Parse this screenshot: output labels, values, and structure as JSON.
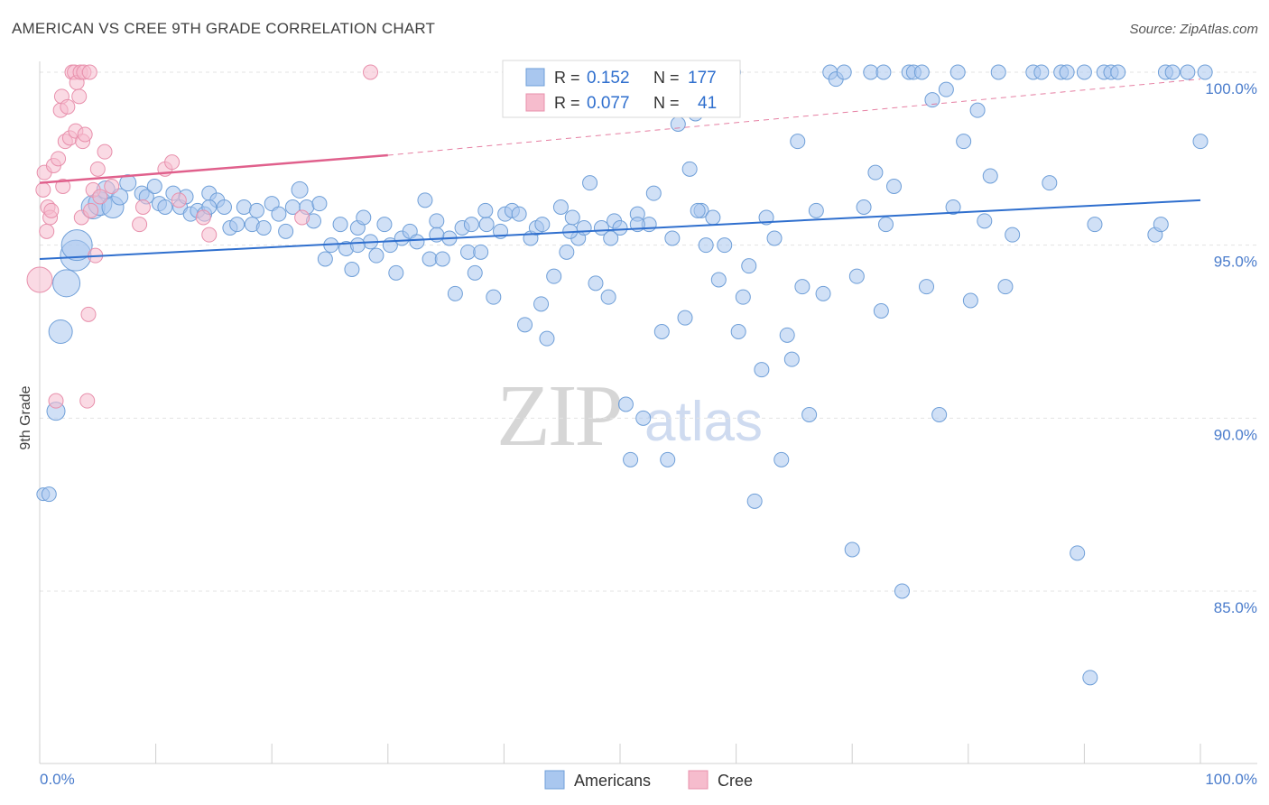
{
  "title": "AMERICAN VS CREE 9TH GRADE CORRELATION CHART",
  "source": "Source: ZipAtlas.com",
  "watermark": {
    "zip": "ZIP",
    "atlas": "atlas"
  },
  "colors": {
    "americans_fill": "#a9c7ef",
    "americans_stroke": "#6f9fd8",
    "americans_line": "#2f6fce",
    "cree_fill": "#f6bccd",
    "cree_stroke": "#e890ac",
    "cree_line": "#e0608c",
    "tick_label": "#4a7ccc",
    "grid": "#e3e3e3"
  },
  "legend_top": {
    "r_label": "R =",
    "n_label": "N =",
    "rows": [
      {
        "r": "0.152",
        "n": "177"
      },
      {
        "r": "0.077",
        "n": "41"
      }
    ]
  },
  "chart_data": {
    "type": "scatter",
    "title": "AMERICAN VS CREE 9TH GRADE CORRELATION CHART",
    "xlabel": "",
    "ylabel": "9th Grade",
    "xlim": [
      0,
      100
    ],
    "ylim": [
      80.8,
      100.8
    ],
    "x_tick_labels": [
      "0.0%",
      "100.0%"
    ],
    "y_ticks": [
      85,
      90,
      95,
      100
    ],
    "y_tick_labels": [
      "85.0%",
      "90.0%",
      "95.0%",
      "100.0%"
    ],
    "grid": true,
    "legend_position": "bottom-center",
    "series": [
      {
        "name": "Americans",
        "r": 0.152,
        "n": 177,
        "trend": {
          "x": [
            0,
            100
          ],
          "y": [
            94.6,
            96.3
          ],
          "dashed_from": null
        },
        "points": [
          [
            0.3,
            87.8,
            7
          ],
          [
            0.8,
            87.8,
            8
          ],
          [
            1.4,
            90.2,
            10
          ],
          [
            1.8,
            92.5,
            13
          ],
          [
            2.3,
            93.9,
            15
          ],
          [
            3.1,
            94.7,
            17
          ],
          [
            3.2,
            95.0,
            17
          ],
          [
            4.6,
            96.1,
            13
          ],
          [
            5.2,
            96.2,
            13
          ],
          [
            6.3,
            96.1,
            12
          ],
          [
            5.7,
            96.6,
            10
          ],
          [
            6.9,
            96.4,
            9
          ],
          [
            7.6,
            96.8,
            9
          ],
          [
            8.8,
            96.5,
            8
          ],
          [
            9.2,
            96.4,
            8
          ],
          [
            9.9,
            96.7,
            8
          ],
          [
            10.3,
            96.2,
            8
          ],
          [
            10.8,
            96.1,
            8
          ],
          [
            11.5,
            96.5,
            8
          ],
          [
            12.1,
            96.1,
            8
          ],
          [
            12.6,
            96.4,
            8
          ],
          [
            13.0,
            95.9,
            8
          ],
          [
            13.6,
            96.0,
            8
          ],
          [
            14.2,
            95.9,
            8
          ],
          [
            14.6,
            96.5,
            8
          ],
          [
            15.3,
            96.3,
            8
          ],
          [
            15.9,
            96.1,
            8
          ],
          [
            16.4,
            95.5,
            8
          ],
          [
            17.0,
            95.6,
            8
          ],
          [
            17.6,
            96.1,
            8
          ],
          [
            18.3,
            95.6,
            8
          ],
          [
            18.7,
            96.0,
            8
          ],
          [
            19.3,
            95.5,
            8
          ],
          [
            20.0,
            96.2,
            8
          ],
          [
            20.6,
            95.9,
            8
          ],
          [
            21.2,
            95.4,
            8
          ],
          [
            21.8,
            96.1,
            8
          ],
          [
            22.4,
            96.6,
            9
          ],
          [
            23.0,
            96.1,
            8
          ],
          [
            23.6,
            95.7,
            8
          ],
          [
            24.1,
            96.2,
            8
          ],
          [
            24.6,
            94.6,
            8
          ],
          [
            25.1,
            95.0,
            8
          ],
          [
            25.9,
            95.6,
            8
          ],
          [
            26.4,
            94.9,
            8
          ],
          [
            26.9,
            94.3,
            8
          ],
          [
            27.4,
            95.5,
            8
          ],
          [
            27.9,
            95.8,
            8
          ],
          [
            28.5,
            95.1,
            8
          ],
          [
            29.0,
            94.7,
            8
          ],
          [
            29.7,
            95.6,
            8
          ],
          [
            30.2,
            95.0,
            8
          ],
          [
            30.7,
            94.2,
            8
          ],
          [
            31.2,
            95.2,
            8
          ],
          [
            31.9,
            95.4,
            8
          ],
          [
            32.5,
            95.1,
            8
          ],
          [
            33.2,
            96.3,
            8
          ],
          [
            33.6,
            94.6,
            8
          ],
          [
            34.2,
            95.7,
            8
          ],
          [
            34.7,
            94.6,
            8
          ],
          [
            35.3,
            95.2,
            8
          ],
          [
            35.8,
            93.6,
            8
          ],
          [
            36.4,
            95.5,
            8
          ],
          [
            36.9,
            94.8,
            8
          ],
          [
            37.5,
            94.2,
            8
          ],
          [
            38.0,
            94.8,
            8
          ],
          [
            38.5,
            95.6,
            8
          ],
          [
            39.1,
            93.5,
            8
          ],
          [
            39.7,
            95.4,
            8
          ],
          [
            40.1,
            95.9,
            8
          ],
          [
            40.7,
            96.0,
            8
          ],
          [
            41.3,
            95.9,
            8
          ],
          [
            41.8,
            92.7,
            8
          ],
          [
            42.3,
            95.2,
            8
          ],
          [
            42.8,
            95.5,
            8
          ],
          [
            43.2,
            93.3,
            8
          ],
          [
            43.7,
            92.3,
            8
          ],
          [
            44.3,
            94.1,
            8
          ],
          [
            44.9,
            96.1,
            8
          ],
          [
            45.4,
            94.8,
            8
          ],
          [
            45.9,
            95.8,
            8
          ],
          [
            46.4,
            95.2,
            8
          ],
          [
            46.9,
            95.5,
            8
          ],
          [
            47.4,
            96.8,
            8
          ],
          [
            47.9,
            93.9,
            8
          ],
          [
            48.4,
            95.5,
            8
          ],
          [
            49.0,
            93.5,
            8
          ],
          [
            49.5,
            95.7,
            8
          ],
          [
            50.0,
            95.5,
            8
          ],
          [
            50.5,
            90.4,
            8
          ],
          [
            50.9,
            88.8,
            8
          ],
          [
            51.5,
            95.9,
            8
          ],
          [
            52.0,
            90.0,
            8
          ],
          [
            52.5,
            95.6,
            8
          ],
          [
            52.9,
            96.5,
            8
          ],
          [
            53.6,
            92.5,
            8
          ],
          [
            54.1,
            88.8,
            8
          ],
          [
            54.5,
            95.2,
            8
          ],
          [
            55.0,
            98.5,
            8
          ],
          [
            55.6,
            92.9,
            8
          ],
          [
            56.0,
            97.2,
            8
          ],
          [
            56.5,
            98.8,
            8
          ],
          [
            57.0,
            96.0,
            8
          ],
          [
            57.4,
            95.0,
            8
          ],
          [
            58.0,
            95.8,
            8
          ],
          [
            58.5,
            94.0,
            8
          ],
          [
            59.0,
            95.0,
            8
          ],
          [
            59.6,
            100.0,
            10
          ],
          [
            60.2,
            92.5,
            8
          ],
          [
            60.6,
            93.5,
            8
          ],
          [
            61.1,
            94.4,
            8
          ],
          [
            61.6,
            87.6,
            8
          ],
          [
            62.2,
            91.4,
            8
          ],
          [
            62.6,
            95.8,
            8
          ],
          [
            63.3,
            95.2,
            8
          ],
          [
            63.9,
            88.8,
            8
          ],
          [
            64.4,
            92.4,
            8
          ],
          [
            64.8,
            91.7,
            8
          ],
          [
            65.3,
            98.0,
            8
          ],
          [
            65.7,
            93.8,
            8
          ],
          [
            66.3,
            90.1,
            8
          ],
          [
            66.9,
            96.0,
            8
          ],
          [
            67.5,
            93.6,
            8
          ],
          [
            68.1,
            100.0,
            8
          ],
          [
            68.6,
            99.8,
            8
          ],
          [
            69.3,
            100.0,
            8
          ],
          [
            70.0,
            86.2,
            8
          ],
          [
            70.4,
            94.1,
            8
          ],
          [
            71.0,
            96.1,
            8
          ],
          [
            71.6,
            100.0,
            8
          ],
          [
            72.0,
            97.1,
            8
          ],
          [
            72.5,
            93.1,
            8
          ],
          [
            72.9,
            95.6,
            8
          ],
          [
            73.6,
            96.7,
            8
          ],
          [
            74.3,
            85.0,
            8
          ],
          [
            74.9,
            100.0,
            8
          ],
          [
            75.3,
            100.0,
            8
          ],
          [
            76.0,
            100.0,
            8
          ],
          [
            76.4,
            93.8,
            8
          ],
          [
            76.9,
            99.2,
            8
          ],
          [
            77.5,
            90.1,
            8
          ],
          [
            78.1,
            99.5,
            8
          ],
          [
            78.7,
            96.1,
            8
          ],
          [
            79.1,
            100.0,
            8
          ],
          [
            79.6,
            98.0,
            8
          ],
          [
            80.2,
            93.4,
            8
          ],
          [
            80.8,
            98.9,
            8
          ],
          [
            81.4,
            95.7,
            8
          ],
          [
            81.9,
            97.0,
            8
          ],
          [
            82.6,
            100.0,
            8
          ],
          [
            83.2,
            93.8,
            8
          ],
          [
            83.8,
            95.3,
            8
          ],
          [
            85.6,
            100.0,
            8
          ],
          [
            86.3,
            100.0,
            8
          ],
          [
            87.0,
            96.8,
            8
          ],
          [
            88.0,
            100.0,
            8
          ],
          [
            88.5,
            100.0,
            8
          ],
          [
            89.4,
            86.1,
            8
          ],
          [
            90.0,
            100.0,
            8
          ],
          [
            90.9,
            95.6,
            8
          ],
          [
            91.7,
            100.0,
            8
          ],
          [
            92.3,
            100.0,
            8
          ],
          [
            92.9,
            100.0,
            8
          ],
          [
            96.1,
            95.3,
            8
          ],
          [
            96.6,
            95.6,
            8
          ],
          [
            97.0,
            100.0,
            8
          ],
          [
            97.6,
            100.0,
            8
          ],
          [
            90.5,
            82.5,
            8
          ],
          [
            100.0,
            98.0,
            8
          ],
          [
            98.9,
            100.0,
            8
          ],
          [
            100.4,
            100.0,
            8
          ],
          [
            72.7,
            100.0,
            8
          ],
          [
            56.7,
            96.0,
            8
          ],
          [
            38.4,
            96.0,
            8
          ],
          [
            45.7,
            95.4,
            8
          ],
          [
            27.4,
            95.0,
            8
          ],
          [
            14.6,
            96.1,
            8
          ],
          [
            37.2,
            95.6,
            8
          ],
          [
            43.3,
            95.6,
            8
          ],
          [
            49.2,
            95.2,
            8
          ],
          [
            34.2,
            95.3,
            8
          ],
          [
            51.5,
            95.6,
            8
          ]
        ]
      },
      {
        "name": "Cree",
        "r": 0.077,
        "n": 41,
        "trend": {
          "x": [
            0,
            30,
            100
          ],
          "y": [
            96.8,
            97.6,
            99.8
          ],
          "dashed_from": 30
        },
        "points": [
          [
            0.0,
            94.0,
            14
          ],
          [
            0.3,
            96.6,
            8
          ],
          [
            0.4,
            97.1,
            8
          ],
          [
            0.6,
            95.4,
            8
          ],
          [
            0.7,
            96.1,
            8
          ],
          [
            0.9,
            95.8,
            8
          ],
          [
            1.0,
            96.0,
            8
          ],
          [
            1.2,
            97.3,
            8
          ],
          [
            1.4,
            90.5,
            8
          ],
          [
            1.6,
            97.5,
            8
          ],
          [
            1.8,
            98.9,
            8
          ],
          [
            1.9,
            99.3,
            8
          ],
          [
            2.0,
            96.7,
            8
          ],
          [
            2.2,
            98.0,
            8
          ],
          [
            2.4,
            99.0,
            8
          ],
          [
            2.6,
            98.1,
            8
          ],
          [
            2.8,
            100.0,
            8
          ],
          [
            3.0,
            100.0,
            8
          ],
          [
            3.1,
            98.3,
            8
          ],
          [
            3.2,
            99.7,
            8
          ],
          [
            3.4,
            99.3,
            8
          ],
          [
            3.5,
            100.0,
            8
          ],
          [
            3.6,
            95.8,
            8
          ],
          [
            3.7,
            98.0,
            8
          ],
          [
            3.8,
            100.0,
            8
          ],
          [
            3.9,
            98.2,
            8
          ],
          [
            4.1,
            90.5,
            8
          ],
          [
            4.2,
            93.0,
            8
          ],
          [
            4.3,
            100.0,
            8
          ],
          [
            4.4,
            96.0,
            8
          ],
          [
            4.6,
            96.6,
            8
          ],
          [
            4.8,
            94.7,
            8
          ],
          [
            5.0,
            97.2,
            8
          ],
          [
            5.2,
            96.4,
            8
          ],
          [
            5.6,
            97.7,
            8
          ],
          [
            6.2,
            96.7,
            8
          ],
          [
            8.6,
            95.6,
            8
          ],
          [
            8.9,
            96.1,
            8
          ],
          [
            10.8,
            97.2,
            8
          ],
          [
            11.4,
            97.4,
            8
          ],
          [
            12.0,
            96.3,
            8
          ],
          [
            14.1,
            95.8,
            8
          ],
          [
            14.6,
            95.3,
            8
          ],
          [
            28.5,
            100.0,
            8
          ],
          [
            22.6,
            95.8,
            8
          ]
        ]
      }
    ]
  },
  "bottom_legend": [
    "Americans",
    "Cree"
  ]
}
